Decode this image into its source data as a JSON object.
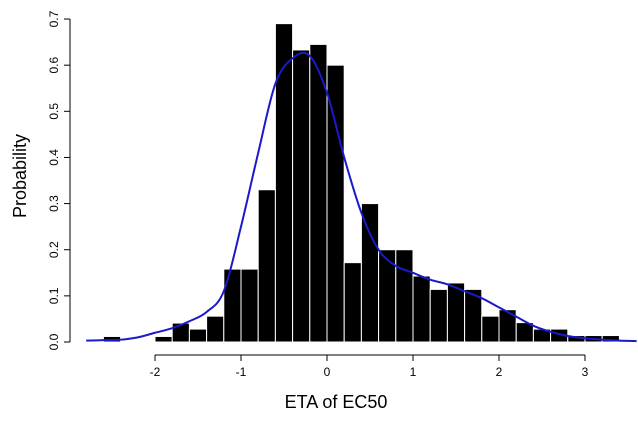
{
  "chart_data": {
    "type": "bar",
    "title": "",
    "xlabel": "ETA of EC50",
    "ylabel": "Probability",
    "xlim": [
      -2.8,
      3.6
    ],
    "ylim": [
      0,
      0.72
    ],
    "x_ticks": [
      -2,
      -1,
      0,
      1,
      2,
      3
    ],
    "x_tick_labels": [
      "-2",
      "-1",
      "0",
      "1",
      "2",
      "3"
    ],
    "y_ticks": [
      0.0,
      0.1,
      0.2,
      0.3,
      0.4,
      0.5,
      0.6,
      0.7
    ],
    "y_tick_labels": [
      "0.0",
      "0.1",
      "0.2",
      "0.3",
      "0.4",
      "0.5",
      "0.6",
      "0.7"
    ],
    "grid": false,
    "bar_color": "#000000",
    "bar_edge_color": "#ffffff",
    "bin_width": 0.2,
    "bin_starts": [
      -2.6,
      -2.0,
      -1.8,
      -1.6,
      -1.4,
      -1.2,
      -1.0,
      -0.8,
      -0.6,
      -0.4,
      -0.2,
      0.0,
      0.2,
      0.4,
      0.6,
      0.8,
      1.0,
      1.2,
      1.4,
      1.6,
      1.8,
      2.0,
      2.2,
      2.4,
      2.6,
      2.8,
      3.0,
      3.2
    ],
    "values": [
      0.012,
      0.012,
      0.041,
      0.028,
      0.056,
      0.158,
      0.158,
      0.33,
      0.69,
      0.633,
      0.645,
      0.6,
      0.172,
      0.3,
      0.2,
      0.2,
      0.143,
      0.114,
      0.128,
      0.114,
      0.056,
      0.07,
      0.042,
      0.028,
      0.028,
      0.014,
      0.014,
      0.014
    ],
    "density": {
      "color": "#1a1acc",
      "x": [
        -2.8,
        -2.6,
        -2.4,
        -2.2,
        -2.0,
        -1.8,
        -1.6,
        -1.4,
        -1.2,
        -1.0,
        -0.8,
        -0.6,
        -0.4,
        -0.2,
        0.0,
        0.2,
        0.4,
        0.6,
        0.8,
        1.0,
        1.2,
        1.4,
        1.6,
        1.8,
        2.0,
        2.2,
        2.4,
        2.6,
        2.8,
        3.0,
        3.2,
        3.4,
        3.6
      ],
      "y": [
        0.003,
        0.004,
        0.005,
        0.01,
        0.02,
        0.03,
        0.045,
        0.065,
        0.11,
        0.25,
        0.41,
        0.56,
        0.615,
        0.62,
        0.54,
        0.4,
        0.28,
        0.2,
        0.165,
        0.15,
        0.135,
        0.125,
        0.11,
        0.095,
        0.075,
        0.055,
        0.035,
        0.022,
        0.013,
        0.008,
        0.005,
        0.003,
        0.002
      ]
    }
  }
}
